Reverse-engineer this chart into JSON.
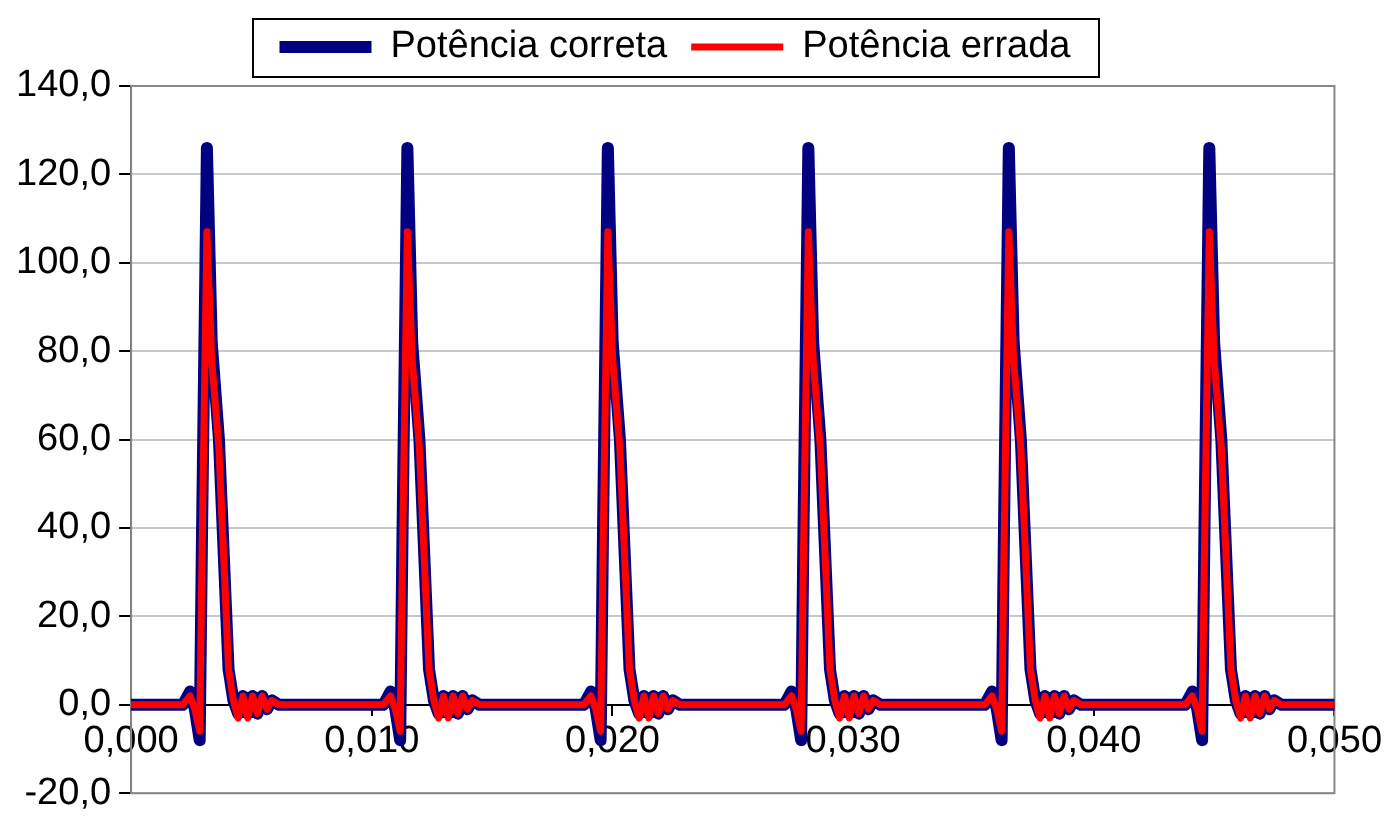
{
  "chart_data": {
    "type": "line",
    "legend": "top",
    "grid": "y",
    "marker": "none",
    "line_style": "solid",
    "xlim": [
      0,
      0.05
    ],
    "ylim": [
      -20,
      140
    ],
    "xticks": [
      {
        "value": 0,
        "label": "0,000"
      },
      {
        "value": 0.01,
        "label": "0,010"
      },
      {
        "value": 0.02,
        "label": "0,020"
      },
      {
        "value": 0.03,
        "label": "0,030"
      },
      {
        "value": 0.04,
        "label": "0,040"
      },
      {
        "value": 0.05,
        "label": "0,050"
      }
    ],
    "yticks": [
      {
        "value": -20,
        "label": "-20,0"
      },
      {
        "value": 0,
        "label": "0,0"
      },
      {
        "value": 20,
        "label": "20,0"
      },
      {
        "value": 40,
        "label": "40,0"
      },
      {
        "value": 60,
        "label": "60,0"
      },
      {
        "value": 80,
        "label": "80,0"
      },
      {
        "value": 100,
        "label": "100,0"
      },
      {
        "value": 120,
        "label": "120,0"
      },
      {
        "value": 140,
        "label": "140,0"
      }
    ],
    "x": [
      0,
      0.00215,
      0.00245,
      0.00265,
      0.00285,
      0.00295,
      0.00315,
      0.00335,
      0.00365,
      0.00405,
      0.00425,
      0.00445,
      0.00465,
      0.00485,
      0.00505,
      0.00525,
      0.00545,
      0.00565,
      0.00585,
      0.00615,
      0.01048,
      0.01078,
      0.01098,
      0.01118,
      0.01128,
      0.01148,
      0.01168,
      0.01198,
      0.01238,
      0.01258,
      0.01278,
      0.01298,
      0.01318,
      0.01338,
      0.01358,
      0.01378,
      0.01398,
      0.01418,
      0.01448,
      0.01881,
      0.01911,
      0.01931,
      0.01951,
      0.01961,
      0.01981,
      0.02001,
      0.02031,
      0.02071,
      0.02091,
      0.02111,
      0.02131,
      0.02151,
      0.02171,
      0.02191,
      0.02211,
      0.02231,
      0.02251,
      0.02281,
      0.02714,
      0.02744,
      0.02764,
      0.02784,
      0.02794,
      0.02814,
      0.02834,
      0.02864,
      0.02904,
      0.02924,
      0.02944,
      0.02964,
      0.02984,
      0.03004,
      0.03024,
      0.03044,
      0.03064,
      0.03084,
      0.03114,
      0.03547,
      0.03577,
      0.03597,
      0.03617,
      0.03627,
      0.03647,
      0.03667,
      0.03697,
      0.03737,
      0.03757,
      0.03777,
      0.03797,
      0.03817,
      0.03837,
      0.03857,
      0.03877,
      0.03897,
      0.03917,
      0.03947,
      0.0438,
      0.0441,
      0.0443,
      0.0445,
      0.0446,
      0.0448,
      0.045,
      0.0453,
      0.0457,
      0.0459,
      0.0461,
      0.0463,
      0.0465,
      0.0467,
      0.0469,
      0.0471,
      0.0473,
      0.0475,
      0.0478,
      0.05
    ],
    "series": [
      {
        "name": "Potência correta",
        "color": "#000080",
        "values": [
          0,
          0,
          3,
          -1,
          -8,
          40,
          126,
          82,
          60,
          8,
          1,
          -2,
          2,
          -2,
          2,
          -2,
          2,
          -1,
          1,
          0,
          0,
          3,
          -1,
          -8,
          40,
          126,
          82,
          60,
          8,
          1,
          -2,
          2,
          -2,
          2,
          -2,
          2,
          -1,
          1,
          0,
          0,
          3,
          -1,
          -8,
          40,
          126,
          82,
          60,
          8,
          1,
          -2,
          2,
          -2,
          2,
          -2,
          2,
          -1,
          1,
          0,
          0,
          3,
          -1,
          -8,
          40,
          126,
          82,
          60,
          8,
          1,
          -2,
          2,
          -2,
          2,
          -2,
          2,
          -1,
          1,
          0,
          0,
          3,
          -1,
          -8,
          40,
          126,
          82,
          60,
          8,
          1,
          -2,
          2,
          -2,
          2,
          -2,
          2,
          -1,
          1,
          0,
          0,
          3,
          -1,
          -8,
          40,
          126,
          82,
          60,
          8,
          1,
          -2,
          2,
          -2,
          2,
          -2,
          2,
          -1,
          1,
          0,
          0
        ]
      },
      {
        "name": "Potência errada",
        "color": "#ff0000",
        "values": [
          0,
          0,
          2,
          -1,
          -6,
          35,
          107,
          78,
          58,
          8,
          1,
          -3,
          2,
          -3,
          2,
          -2,
          2,
          -1,
          1,
          0,
          0,
          2,
          -1,
          -6,
          35,
          107,
          78,
          58,
          8,
          1,
          -3,
          2,
          -3,
          2,
          -2,
          2,
          -1,
          1,
          0,
          0,
          2,
          -1,
          -6,
          35,
          107,
          78,
          58,
          8,
          1,
          -3,
          2,
          -3,
          2,
          -2,
          2,
          -1,
          1,
          0,
          0,
          2,
          -1,
          -6,
          35,
          107,
          78,
          58,
          8,
          1,
          -3,
          2,
          -3,
          2,
          -2,
          2,
          -1,
          1,
          0,
          0,
          2,
          -1,
          -6,
          35,
          107,
          78,
          58,
          8,
          1,
          -3,
          2,
          -3,
          2,
          -2,
          2,
          -1,
          1,
          0,
          0,
          2,
          -1,
          -6,
          35,
          107,
          78,
          58,
          8,
          1,
          -3,
          2,
          -3,
          2,
          -2,
          2,
          -1,
          1,
          0,
          0
        ]
      }
    ]
  }
}
